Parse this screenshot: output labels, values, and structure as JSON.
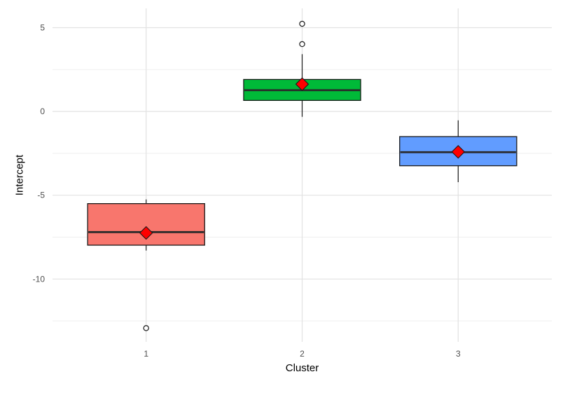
{
  "chart_data": {
    "type": "boxplot",
    "title": "",
    "xlabel": "Cluster",
    "ylabel": "Intercept",
    "categories": [
      "1",
      "2",
      "3"
    ],
    "ylim": [
      -13.75,
      6.15
    ],
    "y_major_ticks": [
      {
        "value": 5,
        "label": "5"
      },
      {
        "value": 0,
        "label": "0"
      },
      {
        "value": -5,
        "label": "-5"
      },
      {
        "value": -10,
        "label": "-10"
      }
    ],
    "y_minor_ticks": [
      2.5,
      -2.5,
      -7.5,
      -12.5
    ],
    "grid": "horizontal major+minor, vertical at categories",
    "legend_position": "none",
    "series": [
      {
        "cluster": "1",
        "fill": "#F8766D",
        "whisker_low": -8.3,
        "q1": -7.98,
        "median": -7.2,
        "q3": -5.5,
        "whisker_high": -5.25,
        "mean": -7.25,
        "outliers": [
          -12.93
        ]
      },
      {
        "cluster": "2",
        "fill": "#00BA38",
        "whisker_low": -0.32,
        "q1": 0.66,
        "median": 1.27,
        "q3": 1.91,
        "whisker_high": 3.42,
        "mean": 1.63,
        "outliers": [
          4.02,
          5.23
        ]
      },
      {
        "cluster": "3",
        "fill": "#619CFF",
        "whisker_low": -4.22,
        "q1": -3.24,
        "median": -2.43,
        "q3": -1.5,
        "whisker_high": -0.53,
        "mean": -2.41,
        "outliers": []
      }
    ],
    "style": {
      "box_stroke": "#1A1A1A",
      "median_color": "#2A2A2A",
      "mean_marker": "diamond",
      "mean_fill": "#FF0000",
      "mean_half_size": 9,
      "outlier_radius": 3.6,
      "grid_major_color": "#E2E2E2",
      "grid_minor_color": "#EFEFEF",
      "tick_label_color": "#4D4D4D",
      "axis_title_color": "#000000",
      "background": "#FFFFFF"
    }
  }
}
